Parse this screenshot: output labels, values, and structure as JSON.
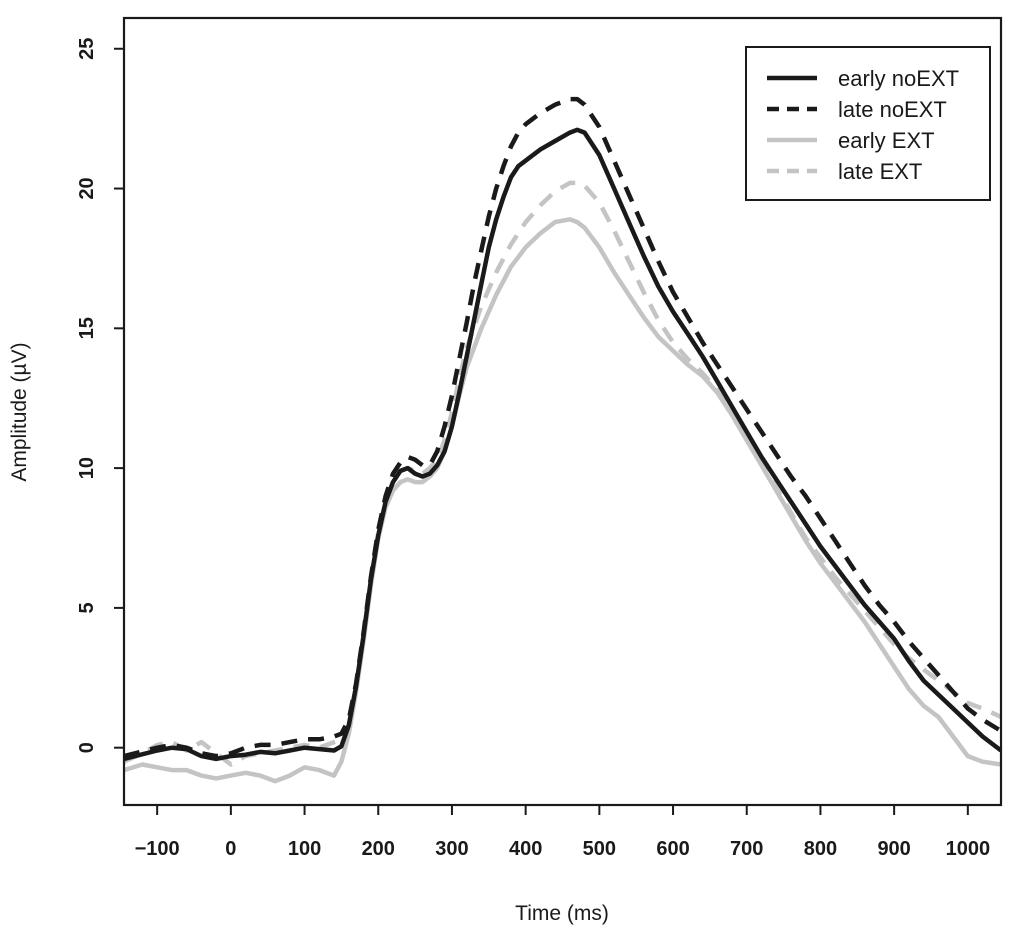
{
  "chart_data": {
    "type": "line",
    "title": "",
    "xlabel": "Time (ms)",
    "ylabel": "Amplitude (µV)",
    "xlim": [
      -145,
      1045
    ],
    "ylim": [
      -2.05,
      26.1
    ],
    "xticks": [
      -100,
      0,
      100,
      200,
      300,
      400,
      500,
      600,
      700,
      800,
      900,
      1000
    ],
    "xtick_labels": [
      "−100",
      "0",
      "100",
      "200",
      "300",
      "400",
      "500",
      "600",
      "700",
      "800",
      "900",
      "1000"
    ],
    "yticks": [
      0,
      5,
      10,
      15,
      20,
      25
    ],
    "ytick_labels": [
      "0",
      "5",
      "10",
      "15",
      "20",
      "25"
    ],
    "legend_position": "top-right",
    "series": [
      {
        "name": "early noEXT",
        "color": "#1a1a1a",
        "style": "solid",
        "x": [
          -145,
          -100,
          -80,
          -60,
          -40,
          -20,
          0,
          20,
          40,
          60,
          80,
          100,
          120,
          140,
          150,
          160,
          170,
          180,
          190,
          200,
          210,
          220,
          230,
          240,
          250,
          260,
          270,
          280,
          290,
          300,
          310,
          320,
          330,
          340,
          350,
          360,
          370,
          380,
          390,
          400,
          420,
          440,
          460,
          470,
          480,
          500,
          520,
          540,
          560,
          580,
          600,
          620,
          640,
          660,
          680,
          700,
          720,
          740,
          760,
          780,
          800,
          820,
          840,
          860,
          880,
          900,
          920,
          940,
          960,
          980,
          1000,
          1020,
          1045
        ],
        "y": [
          -0.4,
          -0.1,
          0.0,
          -0.05,
          -0.3,
          -0.4,
          -0.3,
          -0.25,
          -0.15,
          -0.2,
          -0.1,
          0.0,
          -0.05,
          -0.1,
          0.05,
          0.8,
          2.2,
          4.0,
          6.0,
          7.6,
          8.8,
          9.5,
          9.9,
          10.0,
          9.8,
          9.7,
          9.8,
          10.1,
          10.6,
          11.5,
          12.7,
          14.0,
          15.3,
          16.6,
          17.9,
          18.9,
          19.7,
          20.4,
          20.8,
          21.0,
          21.4,
          21.7,
          22.0,
          22.1,
          22.0,
          21.2,
          20.0,
          18.8,
          17.6,
          16.5,
          15.6,
          14.8,
          14.0,
          13.1,
          12.2,
          11.3,
          10.4,
          9.6,
          8.8,
          8.0,
          7.2,
          6.5,
          5.8,
          5.1,
          4.5,
          3.9,
          3.1,
          2.4,
          1.9,
          1.4,
          0.9,
          0.4,
          -0.1
        ]
      },
      {
        "name": "late noEXT",
        "color": "#1a1a1a",
        "style": "dashed",
        "x": [
          -145,
          -100,
          -80,
          -60,
          -40,
          -20,
          0,
          20,
          40,
          60,
          80,
          100,
          120,
          140,
          150,
          160,
          170,
          180,
          190,
          200,
          210,
          220,
          230,
          240,
          250,
          260,
          270,
          280,
          290,
          300,
          310,
          320,
          330,
          340,
          350,
          360,
          370,
          380,
          390,
          400,
          420,
          440,
          460,
          470,
          480,
          500,
          520,
          540,
          560,
          580,
          600,
          620,
          640,
          660,
          680,
          700,
          720,
          740,
          760,
          780,
          800,
          820,
          840,
          860,
          880,
          900,
          920,
          940,
          960,
          980,
          1000,
          1020,
          1045
        ],
        "y": [
          -0.3,
          0.0,
          0.1,
          0.0,
          -0.2,
          -0.3,
          -0.2,
          0.0,
          0.1,
          0.1,
          0.2,
          0.3,
          0.3,
          0.4,
          0.5,
          1.0,
          2.3,
          4.1,
          6.1,
          7.8,
          9.0,
          9.8,
          10.2,
          10.4,
          10.3,
          10.1,
          10.1,
          10.6,
          11.5,
          12.6,
          13.9,
          15.2,
          16.6,
          17.8,
          19.0,
          20.0,
          20.8,
          21.5,
          22.0,
          22.3,
          22.7,
          23.0,
          23.2,
          23.2,
          23.0,
          22.2,
          21.0,
          19.8,
          18.6,
          17.4,
          16.3,
          15.4,
          14.5,
          13.7,
          12.9,
          12.1,
          11.3,
          10.5,
          9.7,
          9.0,
          8.2,
          7.4,
          6.6,
          5.8,
          5.1,
          4.5,
          3.8,
          3.2,
          2.6,
          2.0,
          1.4,
          1.0,
          0.6
        ]
      },
      {
        "name": "early EXT",
        "color": "#c4c4c4",
        "style": "solid",
        "x": [
          -145,
          -120,
          -100,
          -80,
          -60,
          -40,
          -20,
          0,
          20,
          40,
          60,
          80,
          100,
          120,
          140,
          150,
          160,
          170,
          180,
          190,
          200,
          210,
          220,
          230,
          240,
          250,
          260,
          270,
          280,
          290,
          300,
          310,
          320,
          340,
          360,
          380,
          400,
          420,
          440,
          460,
          470,
          480,
          500,
          520,
          540,
          560,
          580,
          600,
          620,
          640,
          660,
          680,
          700,
          720,
          740,
          760,
          780,
          800,
          820,
          840,
          860,
          880,
          900,
          920,
          940,
          960,
          980,
          1000,
          1020,
          1045
        ],
        "y": [
          -0.8,
          -0.6,
          -0.7,
          -0.8,
          -0.8,
          -1.0,
          -1.1,
          -1.0,
          -0.9,
          -1.0,
          -1.2,
          -1.0,
          -0.7,
          -0.8,
          -1.0,
          -0.5,
          0.5,
          2.0,
          3.8,
          5.8,
          7.5,
          8.6,
          9.2,
          9.5,
          9.6,
          9.5,
          9.5,
          9.7,
          10.0,
          10.6,
          11.5,
          12.6,
          13.6,
          15.0,
          16.2,
          17.2,
          17.9,
          18.4,
          18.8,
          18.9,
          18.8,
          18.6,
          17.9,
          17.0,
          16.2,
          15.4,
          14.7,
          14.2,
          13.7,
          13.3,
          12.7,
          11.9,
          11.0,
          10.1,
          9.2,
          8.3,
          7.4,
          6.6,
          5.9,
          5.2,
          4.5,
          3.7,
          2.9,
          2.1,
          1.5,
          1.1,
          0.4,
          -0.3,
          -0.5,
          -0.6
        ]
      },
      {
        "name": "late EXT",
        "color": "#c4c4c4",
        "style": "dashed",
        "x": [
          -145,
          -120,
          -100,
          -80,
          -60,
          -40,
          -20,
          0,
          20,
          40,
          60,
          80,
          100,
          120,
          140,
          150,
          160,
          170,
          180,
          190,
          200,
          210,
          220,
          230,
          240,
          250,
          260,
          270,
          280,
          290,
          300,
          310,
          320,
          340,
          360,
          380,
          400,
          420,
          440,
          460,
          470,
          480,
          500,
          520,
          540,
          560,
          580,
          600,
          620,
          640,
          660,
          680,
          700,
          720,
          740,
          760,
          780,
          800,
          820,
          840,
          860,
          880,
          900,
          920,
          940,
          960,
          980,
          1000,
          1020,
          1045
        ],
        "y": [
          -0.5,
          -0.2,
          0.1,
          0.2,
          -0.1,
          0.2,
          -0.2,
          -0.6,
          -0.3,
          -0.2,
          -0.1,
          0.0,
          0.1,
          0.0,
          0.2,
          0.3,
          0.8,
          2.2,
          4.0,
          6.0,
          7.7,
          8.8,
          9.5,
          9.9,
          10.0,
          9.9,
          9.8,
          10.0,
          10.3,
          11.0,
          12.0,
          13.2,
          14.3,
          15.8,
          17.0,
          18.0,
          18.8,
          19.4,
          19.9,
          20.2,
          20.2,
          20.1,
          19.5,
          18.5,
          17.4,
          16.3,
          15.3,
          14.5,
          13.9,
          13.4,
          12.8,
          12.0,
          11.1,
          10.2,
          9.3,
          8.4,
          7.5,
          6.8,
          6.1,
          5.5,
          4.9,
          4.3,
          3.7,
          3.2,
          2.8,
          2.4,
          2.0,
          1.6,
          1.4,
          1.1
        ]
      }
    ]
  }
}
